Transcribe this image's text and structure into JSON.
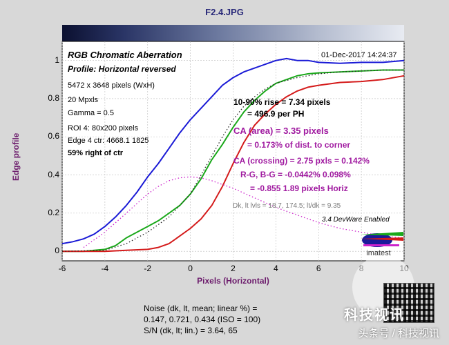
{
  "window_title": "F2.4.JPG",
  "chart_data": {
    "type": "line",
    "title": "RGB Chromatic Aberration",
    "subtitle": "Profile: Horizontal reversed",
    "timestamp": "01-Dec-2017 14:24:37",
    "xlabel": "Pixels (Horizontal)",
    "ylabel": "Edge profile",
    "xlim": [
      -6,
      10
    ],
    "ylim": [
      -0.05,
      1.1
    ],
    "x_ticks": [
      -6,
      -4,
      -2,
      0,
      2,
      4,
      6,
      8,
      10
    ],
    "y_ticks": [
      0,
      0.2,
      0.4,
      0.6,
      0.8,
      1
    ],
    "x_tick_labels": [
      "-6",
      "-4",
      "-2",
      "0",
      "2",
      "4",
      "6",
      "8",
      "10"
    ],
    "y_tick_labels": [
      "0",
      "0.2",
      "0.4",
      "0.6",
      "0.8",
      "1"
    ],
    "grid": true,
    "series": [
      {
        "color": "#1a1ad6",
        "style": "solid",
        "x": [
          -6,
          -5.5,
          -5,
          -4.5,
          -4,
          -3.5,
          -3,
          -2.5,
          -2,
          -1.5,
          -1,
          -0.5,
          0,
          0.5,
          1,
          1.5,
          2,
          2.5,
          3,
          3.5,
          4,
          4.5,
          5,
          5.5,
          6,
          7,
          8,
          9,
          10
        ],
        "y": [
          0.04,
          0.05,
          0.065,
          0.09,
          0.13,
          0.18,
          0.24,
          0.31,
          0.39,
          0.46,
          0.54,
          0.62,
          0.69,
          0.75,
          0.81,
          0.87,
          0.91,
          0.94,
          0.96,
          0.98,
          1.0,
          1.01,
          1.0,
          1.0,
          0.99,
          0.985,
          0.99,
          0.99,
          1.0
        ]
      },
      {
        "color": "#1aa81a",
        "style": "solid",
        "x": [
          -6,
          -5,
          -4.5,
          -4,
          -3.5,
          -3,
          -2.5,
          -2,
          -1.5,
          -1,
          -0.5,
          0,
          0.5,
          1,
          1.5,
          2,
          2.5,
          3,
          3.5,
          4,
          4.5,
          5,
          5.5,
          6,
          7,
          8,
          9,
          10
        ],
        "y": [
          0,
          0,
          0.005,
          0.01,
          0.03,
          0.07,
          0.1,
          0.13,
          0.16,
          0.2,
          0.24,
          0.3,
          0.38,
          0.48,
          0.56,
          0.65,
          0.73,
          0.79,
          0.84,
          0.88,
          0.9,
          0.92,
          0.93,
          0.935,
          0.94,
          0.945,
          0.95,
          0.95
        ]
      },
      {
        "color": "#d41a1a",
        "style": "solid",
        "x": [
          -6,
          -4,
          -3,
          -2,
          -1.5,
          -1,
          -0.5,
          0,
          0.5,
          1,
          1.5,
          2,
          2.5,
          3,
          3.5,
          4,
          4.5,
          5,
          5.5,
          6,
          7,
          8,
          9,
          10
        ],
        "y": [
          0,
          0,
          0.005,
          0.01,
          0.02,
          0.04,
          0.08,
          0.12,
          0.17,
          0.24,
          0.34,
          0.46,
          0.57,
          0.66,
          0.72,
          0.77,
          0.81,
          0.84,
          0.86,
          0.87,
          0.885,
          0.89,
          0.9,
          0.92
        ]
      },
      {
        "color": "#222222",
        "style": "dotted",
        "x": [
          -6,
          -4,
          -3,
          -2,
          -1,
          0,
          0.5,
          1,
          1.5,
          2,
          2.5,
          3,
          3.5,
          4,
          5,
          6,
          7,
          8,
          9,
          10
        ],
        "y": [
          0,
          0.005,
          0.04,
          0.1,
          0.18,
          0.3,
          0.4,
          0.5,
          0.6,
          0.69,
          0.76,
          0.81,
          0.85,
          0.88,
          0.91,
          0.93,
          0.94,
          0.945,
          0.95,
          0.95
        ]
      },
      {
        "color": "#cc22cc",
        "style": "dotted",
        "x": [
          -5,
          -4,
          -3,
          -2,
          -1.5,
          -1,
          -0.5,
          0,
          0.5,
          1,
          2,
          3,
          4,
          5,
          6,
          7,
          8,
          9,
          10
        ],
        "y": [
          0.02,
          0.1,
          0.2,
          0.3,
          0.34,
          0.37,
          0.385,
          0.39,
          0.385,
          0.37,
          0.33,
          0.28,
          0.23,
          0.19,
          0.15,
          0.12,
          0.1,
          0.08,
          0.07
        ]
      }
    ],
    "info_lines": [
      "5472 x 3648 pixels (WxH)",
      "20 Mpxls",
      "Gamma = 0.5",
      "ROI 4: 80x200 pixels",
      "Edge 4 ctr: 4668.1  1825",
      "59% right of ctr"
    ],
    "annotations": {
      "rise": "10-90% rise = 7.34 pixels",
      "per_ph": "= 496.9 per PH",
      "ca_area": "CA (area) = 3.35 pixels",
      "ca_area_pct": "= 0.173% of dist. to corner",
      "ca_crossing": "CA (crossing) = 2.75 pxls = 0.142%",
      "rg_bg": "R-G, B-G = -0.0442%  0.098%",
      "rg_bg_px": "= -0.855  1.89 pixels Horiz",
      "levels": "Dk, lt lvls = 18.7, 174.5;  lt/dk = 9.35",
      "devware": "3.4  DevWare Enabled"
    }
  },
  "noise": {
    "line1": "Noise (dk, lt, mean; linear %) =",
    "line2": "0.147,  0.721,  0.434  (ISO =  100)",
    "line3": "S/N (dk, lt; lin.) = 3.64,  65"
  },
  "logo_text": "imatest",
  "watermark": {
    "brand_cn": "科技视讯",
    "footer": "头条号 / 科技视讯"
  }
}
